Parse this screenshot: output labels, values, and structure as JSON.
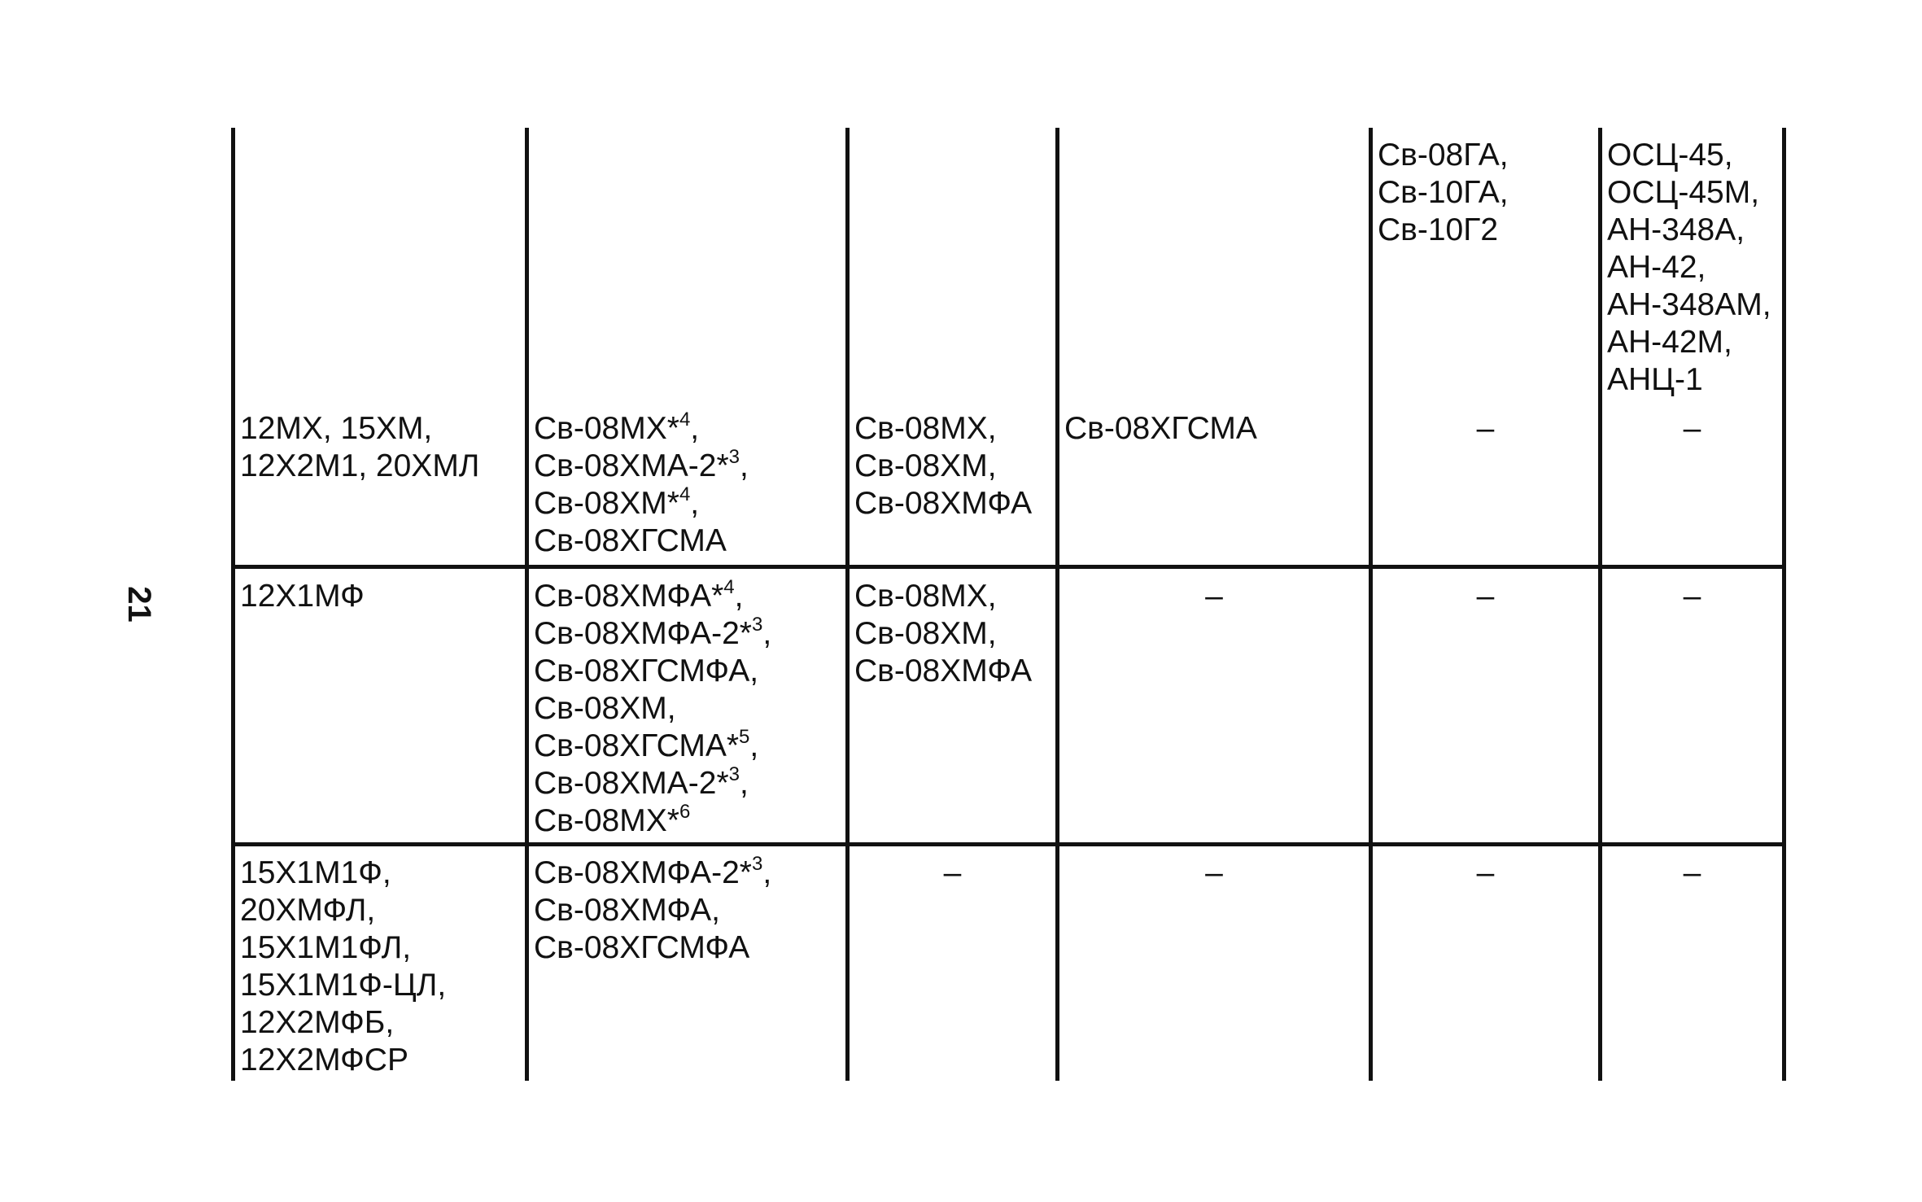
{
  "page_number": "21",
  "table": {
    "rows": [
      [
        null,
        null,
        null,
        null,
        {
          "lines": [
            "Св-08ГА,",
            "Св-10ГА,",
            "Св-10Г2"
          ]
        },
        {
          "lines": [
            "ОСЦ-45,",
            "ОСЦ-45М,",
            "АН-348А,",
            "АН-42,",
            "АН-348АМ,",
            "АН-42М,",
            "АНЦ-1"
          ]
        }
      ],
      [
        {
          "lines": [
            "12МХ, 15ХМ,",
            "12Х2М1, 20ХМЛ"
          ]
        },
        {
          "lines": [
            {
              "text": "Св-08МХ*",
              "sup": "4",
              "tail": ","
            },
            {
              "text": "Св-08ХМА-2*",
              "sup": "3",
              "tail": ","
            },
            {
              "text": "Св-08ХМ*",
              "sup": "4",
              "tail": ","
            },
            "Св-08ХГСМА"
          ]
        },
        {
          "lines": [
            "Св-08МХ,",
            "Св-08ХМ,",
            "Св-08ХМФА"
          ]
        },
        {
          "lines": [
            "Св-08ХГСМА"
          ]
        },
        "–",
        "–"
      ],
      [
        {
          "lines": [
            "12Х1МФ"
          ]
        },
        {
          "lines": [
            {
              "text": "Св-08ХМФА*",
              "sup": "4",
              "tail": ","
            },
            {
              "text": "Св-08ХМФА-2*",
              "sup": "3",
              "tail": ","
            },
            "Св-08ХГСМФА,",
            "Св-08ХМ,",
            {
              "text": "Св-08ХГСМА*",
              "sup": "5",
              "tail": ","
            },
            {
              "text": "Св-08ХМА-2*",
              "sup": "3",
              "tail": ","
            },
            {
              "text": "Св-08МХ*",
              "sup": "6"
            }
          ]
        },
        {
          "lines": [
            "Св-08МХ,",
            "Св-08ХМ,",
            "Св-08ХМФА"
          ]
        },
        "–",
        "–",
        "–"
      ],
      [
        {
          "lines": [
            "15Х1М1Ф,",
            "20ХМФЛ,",
            "15Х1М1ФЛ,",
            "15Х1М1Ф-ЦЛ,",
            "12Х2МФБ,",
            "12Х2МФСР"
          ]
        },
        {
          "lines": [
            {
              "text": "Св-08ХМФА-2*",
              "sup": "3",
              "tail": ","
            },
            "Св-08ХМФА,",
            "Св-08ХГСМФА"
          ]
        },
        "–",
        "–",
        "–",
        "–"
      ]
    ]
  }
}
